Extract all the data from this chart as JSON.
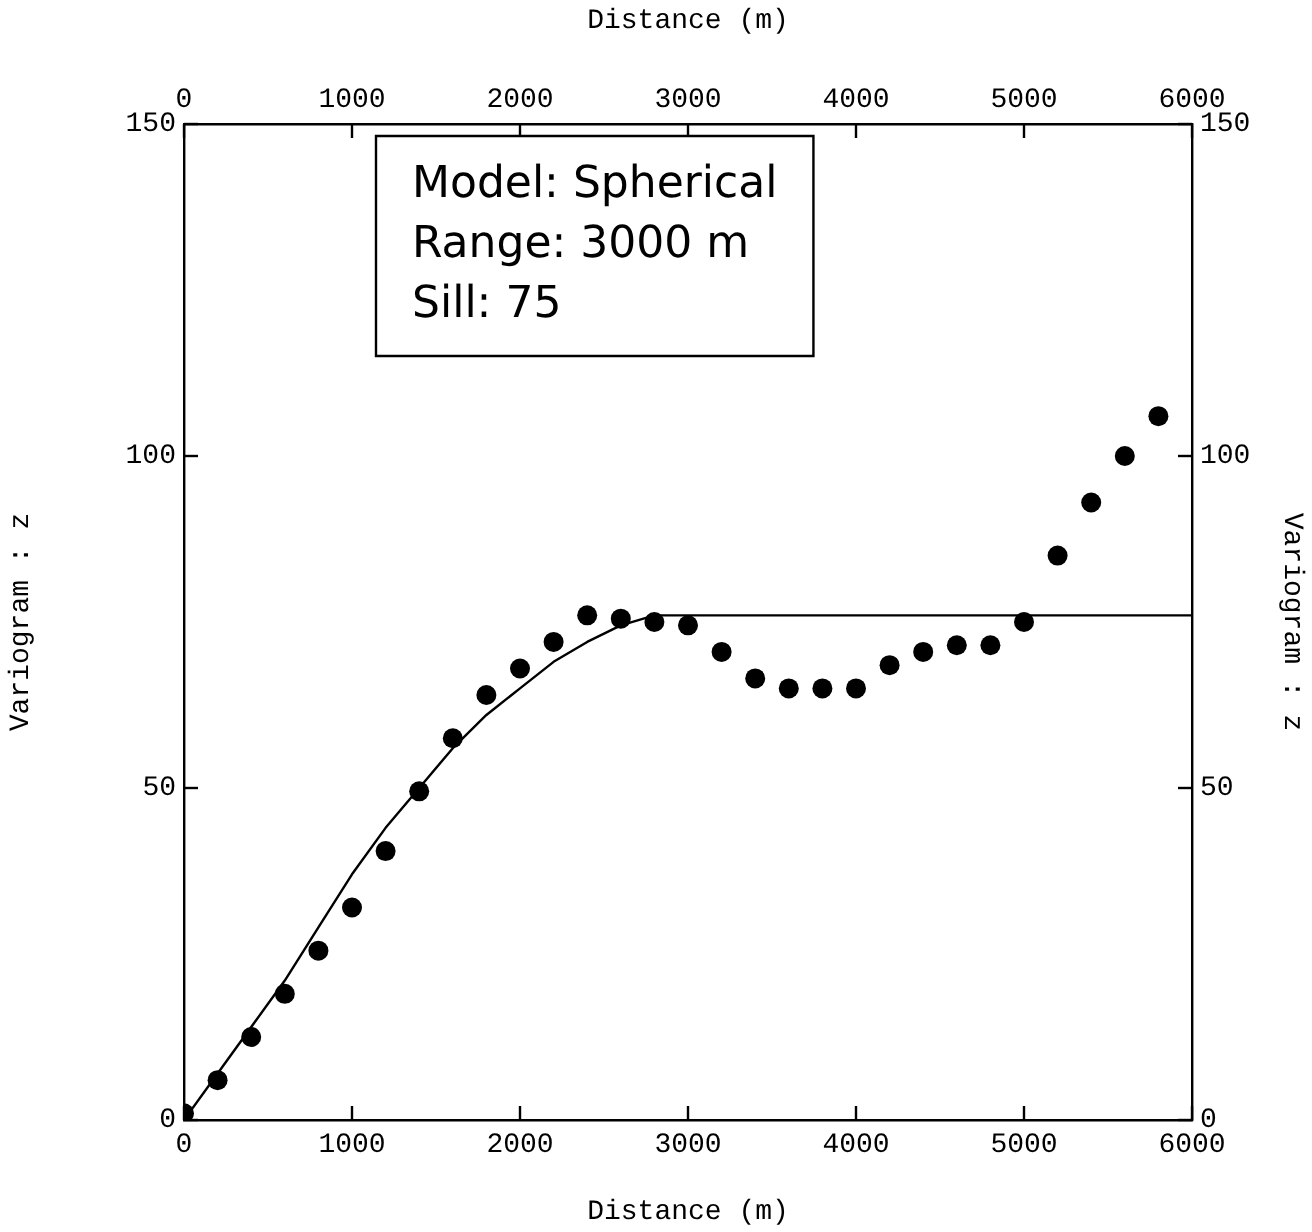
{
  "chart_data": {
    "type": "scatter",
    "xlabel": "Distance (m)",
    "x2label": "Distance (m)",
    "ylabel": "Variogram : z",
    "y2label": "Variogram : z",
    "xlim": [
      0,
      6000
    ],
    "xticks": [
      0,
      1000,
      2000,
      3000,
      4000,
      5000,
      6000
    ],
    "x2lim": [
      0,
      6000
    ],
    "x2ticks": [
      0,
      1000,
      2000,
      3000,
      4000,
      5000,
      6000
    ],
    "ylim": [
      0,
      150
    ],
    "yticks": [
      0,
      50,
      100,
      150
    ],
    "y2lim": [
      0,
      150
    ],
    "y2ticks": [
      0,
      50,
      100,
      150
    ],
    "annotations": [
      "Model: Spherical\nRange: 3000 m\nSill: 75"
    ],
    "grid": false,
    "legend": false,
    "series": [
      {
        "marker": "circle",
        "color": "#000000",
        "x": [
          0,
          200,
          400,
          600,
          800,
          1000,
          1200,
          1400,
          1600,
          1800,
          2000,
          2200,
          2400,
          2600,
          2800,
          3000,
          3200,
          3400,
          3600,
          3800,
          4000,
          4200,
          4400,
          4600,
          4800,
          5000,
          5200,
          5400,
          5600,
          5800
        ],
        "values": [
          1,
          6,
          12.5,
          19,
          25.5,
          32,
          40.5,
          49.5,
          57.5,
          64,
          68,
          72,
          76,
          75.5,
          75,
          74.5,
          70.5,
          66.5,
          65,
          65,
          65,
          68.5,
          70.5,
          71.5,
          71.5,
          75,
          85,
          93,
          100,
          106
        ]
      },
      {
        "type": "line",
        "marker": "none",
        "color": "#000000",
        "x": [
          0,
          200,
          400,
          600,
          800,
          1000,
          1200,
          1400,
          1600,
          1800,
          2000,
          2200,
          2400,
          2600,
          2800,
          6000
        ],
        "values": [
          0,
          7,
          14,
          21,
          29,
          37,
          44,
          50,
          56,
          61,
          65,
          69,
          72,
          74.5,
          76,
          76
        ]
      }
    ]
  }
}
